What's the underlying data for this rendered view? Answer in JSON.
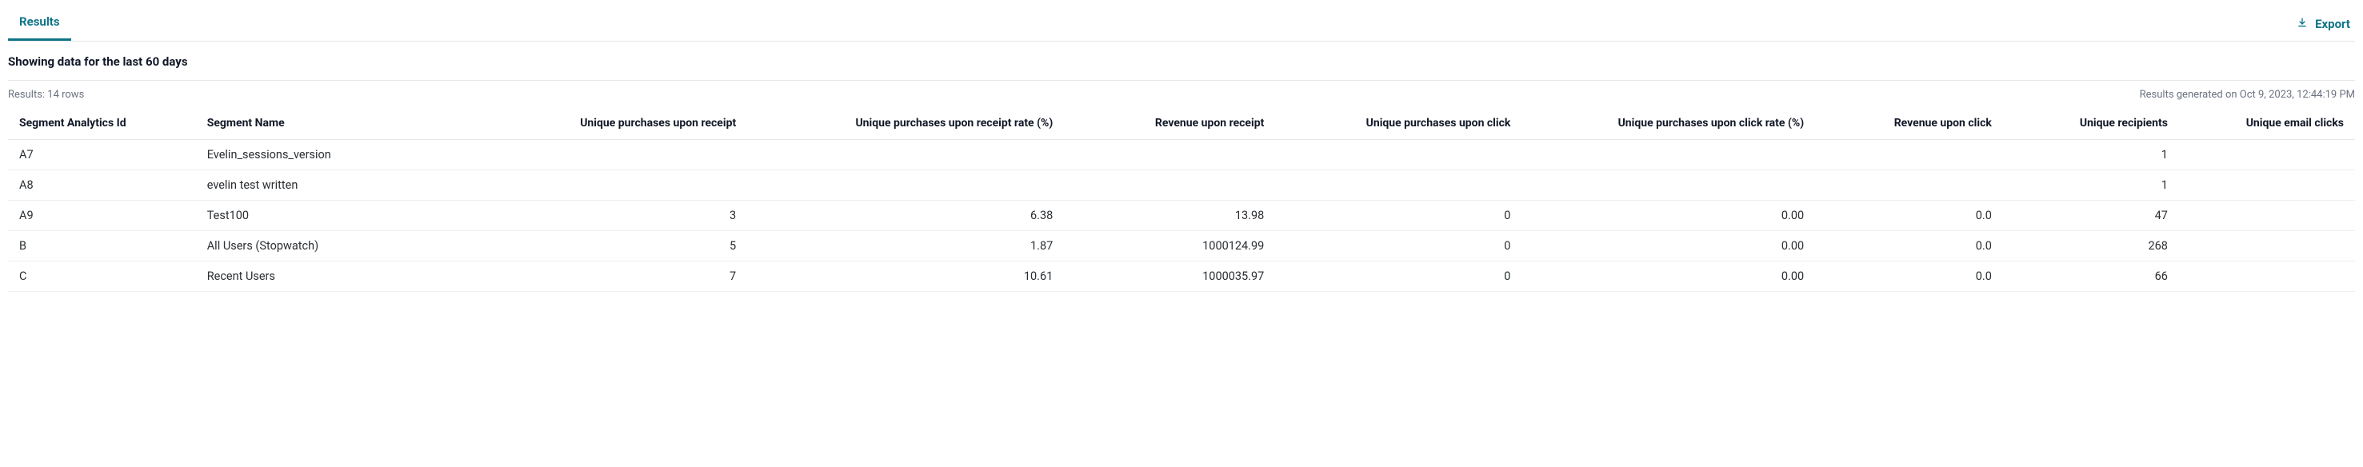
{
  "tabs": {
    "results_label": "Results"
  },
  "toolbar": {
    "export_label": "Export"
  },
  "subheading": "Showing data for the last 60 days",
  "meta": {
    "row_count_text": "Results: 14 rows",
    "generated_text": "Results generated on Oct 9, 2023, 12:44:19 PM"
  },
  "table": {
    "columns": [
      "Segment Analytics Id",
      "Segment Name",
      "Unique purchases upon receipt",
      "Unique purchases upon receipt rate (%)",
      "Revenue upon receipt",
      "Unique purchases upon click",
      "Unique purchases upon click rate (%)",
      "Revenue upon click",
      "Unique recipients",
      "Unique email clicks"
    ],
    "rows": [
      {
        "id": "A7",
        "name": "Evelin_sessions_version",
        "upr": "",
        "upr_rate": "",
        "rev_receipt": "",
        "upc": "",
        "upc_rate": "",
        "rev_click": "",
        "recipients": "1",
        "email_clicks": ""
      },
      {
        "id": "A8",
        "name": "evelin test written",
        "upr": "",
        "upr_rate": "",
        "rev_receipt": "",
        "upc": "",
        "upc_rate": "",
        "rev_click": "",
        "recipients": "1",
        "email_clicks": ""
      },
      {
        "id": "A9",
        "name": "Test100",
        "upr": "3",
        "upr_rate": "6.38",
        "rev_receipt": "13.98",
        "upc": "0",
        "upc_rate": "0.00",
        "rev_click": "0.0",
        "recipients": "47",
        "email_clicks": ""
      },
      {
        "id": "B",
        "name": "All Users (Stopwatch)",
        "upr": "5",
        "upr_rate": "1.87",
        "rev_receipt": "1000124.99",
        "upc": "0",
        "upc_rate": "0.00",
        "rev_click": "0.0",
        "recipients": "268",
        "email_clicks": ""
      },
      {
        "id": "C",
        "name": "Recent Users",
        "upr": "7",
        "upr_rate": "10.61",
        "rev_receipt": "1000035.97",
        "upc": "0",
        "upc_rate": "0.00",
        "rev_click": "0.0",
        "recipients": "66",
        "email_clicks": ""
      }
    ]
  }
}
